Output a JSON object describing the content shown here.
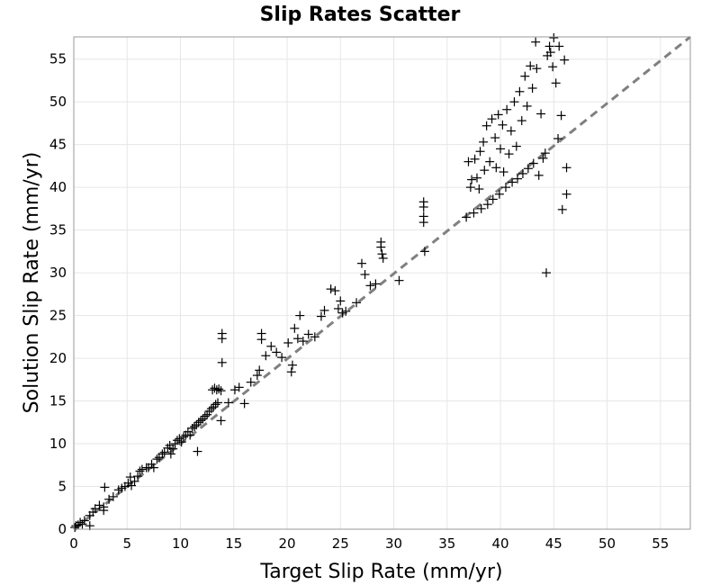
{
  "chart_data": {
    "type": "scatter",
    "title": "Slip Rates Scatter",
    "xlabel": "Target Slip Rate (mm/yr)",
    "ylabel": "Solution Slip Rate (mm/yr)",
    "xlim": [
      0,
      57.8
    ],
    "ylim": [
      0,
      57.6
    ],
    "xticks": [
      0,
      5,
      10,
      15,
      20,
      25,
      30,
      35,
      40,
      45,
      50,
      55
    ],
    "yticks": [
      0,
      5,
      10,
      15,
      20,
      25,
      30,
      35,
      40,
      45,
      50,
      55
    ],
    "grid": true,
    "marker": "plus",
    "marker_color": "#000000",
    "reference_line": {
      "style": "dashed",
      "color": "#808080",
      "from": [
        0,
        0
      ],
      "to": [
        57.8,
        57.6
      ]
    },
    "series": [
      {
        "points": [
          [
            0.1,
            0.2
          ],
          [
            0.2,
            0.4
          ],
          [
            0.4,
            0.5
          ],
          [
            0.6,
            0.8
          ],
          [
            0.8,
            0.6
          ],
          [
            1.0,
            1.0
          ],
          [
            1.5,
            0.4
          ],
          [
            1.5,
            1.6
          ],
          [
            1.8,
            2.0
          ],
          [
            2.0,
            2.4
          ],
          [
            2.4,
            2.8
          ],
          [
            2.8,
            2.2
          ],
          [
            2.8,
            2.6
          ],
          [
            2.9,
            4.9
          ],
          [
            3.3,
            3.5
          ],
          [
            3.7,
            3.8
          ],
          [
            4.2,
            4.6
          ],
          [
            4.5,
            4.8
          ],
          [
            4.8,
            5.0
          ],
          [
            5.1,
            5.4
          ],
          [
            5.3,
            6.1
          ],
          [
            5.4,
            5.1
          ],
          [
            5.7,
            5.6
          ],
          [
            6.0,
            6.2
          ],
          [
            6.2,
            6.8
          ],
          [
            6.4,
            7.0
          ],
          [
            6.8,
            7.2
          ],
          [
            7.0,
            7.2
          ],
          [
            7.3,
            7.6
          ],
          [
            7.5,
            7.2
          ],
          [
            7.8,
            8.2
          ],
          [
            8.0,
            8.4
          ],
          [
            8.3,
            8.8
          ],
          [
            8.5,
            9.0
          ],
          [
            8.8,
            9.5
          ],
          [
            9.0,
            9.8
          ],
          [
            9.1,
            8.8
          ],
          [
            9.3,
            9.4
          ],
          [
            9.5,
            10.0
          ],
          [
            9.7,
            10.4
          ],
          [
            9.9,
            10.6
          ],
          [
            10.1,
            10.2
          ],
          [
            10.3,
            10.8
          ],
          [
            10.5,
            11.0
          ],
          [
            10.7,
            11.4
          ],
          [
            10.9,
            11.0
          ],
          [
            11.1,
            11.8
          ],
          [
            11.3,
            12.0
          ],
          [
            11.5,
            12.2
          ],
          [
            11.7,
            12.5
          ],
          [
            11.6,
            9.1
          ],
          [
            11.9,
            12.7
          ],
          [
            12.1,
            12.9
          ],
          [
            12.3,
            13.2
          ],
          [
            12.5,
            13.4
          ],
          [
            12.7,
            13.8
          ],
          [
            12.9,
            14.1
          ],
          [
            13.1,
            14.3
          ],
          [
            13.3,
            14.6
          ],
          [
            13.5,
            14.8
          ],
          [
            13.8,
            12.7
          ],
          [
            13.0,
            16.3
          ],
          [
            13.2,
            16.5
          ],
          [
            13.4,
            16.3
          ],
          [
            13.6,
            16.4
          ],
          [
            13.8,
            16.2
          ],
          [
            13.9,
            19.5
          ],
          [
            13.9,
            22.3
          ],
          [
            13.9,
            22.9
          ],
          [
            14.5,
            14.8
          ],
          [
            15.1,
            16.3
          ],
          [
            15.5,
            16.6
          ],
          [
            16.0,
            14.7
          ],
          [
            16.6,
            17.2
          ],
          [
            17.2,
            18.0
          ],
          [
            17.4,
            18.6
          ],
          [
            17.6,
            22.9
          ],
          [
            17.6,
            22.2
          ],
          [
            18.0,
            20.3
          ],
          [
            18.5,
            21.4
          ],
          [
            19.0,
            20.7
          ],
          [
            19.5,
            20.1
          ],
          [
            20.1,
            21.8
          ],
          [
            20.4,
            18.4
          ],
          [
            20.5,
            19.2
          ],
          [
            20.7,
            23.5
          ],
          [
            21.0,
            22.3
          ],
          [
            21.2,
            25.0
          ],
          [
            21.5,
            22.0
          ],
          [
            22.0,
            22.8
          ],
          [
            22.6,
            22.5
          ],
          [
            23.2,
            24.9
          ],
          [
            23.5,
            25.6
          ],
          [
            24.1,
            28.1
          ],
          [
            24.5,
            27.9
          ],
          [
            24.8,
            25.8
          ],
          [
            25.0,
            26.7
          ],
          [
            25.2,
            25.3
          ],
          [
            25.5,
            25.5
          ],
          [
            26.5,
            26.5
          ],
          [
            27.0,
            31.1
          ],
          [
            27.3,
            29.8
          ],
          [
            27.8,
            28.5
          ],
          [
            28.3,
            28.7
          ],
          [
            28.8,
            33.6
          ],
          [
            28.8,
            33.0
          ],
          [
            28.9,
            32.2
          ],
          [
            29.0,
            31.7
          ],
          [
            30.5,
            29.1
          ],
          [
            32.8,
            38.3
          ],
          [
            32.8,
            37.7
          ],
          [
            32.8,
            36.6
          ],
          [
            32.8,
            35.9
          ],
          [
            32.9,
            32.5
          ],
          [
            36.8,
            36.5
          ],
          [
            37.0,
            43.0
          ],
          [
            37.2,
            40.0
          ],
          [
            37.3,
            40.9
          ],
          [
            37.5,
            37.0
          ],
          [
            37.6,
            43.3
          ],
          [
            37.8,
            41.1
          ],
          [
            38.0,
            39.8
          ],
          [
            38.1,
            44.2
          ],
          [
            38.2,
            37.5
          ],
          [
            38.4,
            45.3
          ],
          [
            38.5,
            42.0
          ],
          [
            38.7,
            47.2
          ],
          [
            38.8,
            38.0
          ],
          [
            39.0,
            43.0
          ],
          [
            39.2,
            48.0
          ],
          [
            39.3,
            38.6
          ],
          [
            39.5,
            45.8
          ],
          [
            39.6,
            42.3
          ],
          [
            39.8,
            48.5
          ],
          [
            39.9,
            39.2
          ],
          [
            40.0,
            44.5
          ],
          [
            40.2,
            47.3
          ],
          [
            40.3,
            41.8
          ],
          [
            40.5,
            40.0
          ],
          [
            40.6,
            49.1
          ],
          [
            40.8,
            43.9
          ],
          [
            41.0,
            46.6
          ],
          [
            41.1,
            40.6
          ],
          [
            41.3,
            50.0
          ],
          [
            41.5,
            44.8
          ],
          [
            41.6,
            41.0
          ],
          [
            41.8,
            51.2
          ],
          [
            42.0,
            47.8
          ],
          [
            42.1,
            41.6
          ],
          [
            42.3,
            53.0
          ],
          [
            42.5,
            49.5
          ],
          [
            42.6,
            42.2
          ],
          [
            42.8,
            54.2
          ],
          [
            43.0,
            51.6
          ],
          [
            43.1,
            42.8
          ],
          [
            43.3,
            57.0
          ],
          [
            43.4,
            53.9
          ],
          [
            43.6,
            41.4
          ],
          [
            43.8,
            48.6
          ],
          [
            44.0,
            43.4
          ],
          [
            44.2,
            44.0
          ],
          [
            44.3,
            30.0
          ],
          [
            44.4,
            55.4
          ],
          [
            44.6,
            56.5
          ],
          [
            44.7,
            55.8
          ],
          [
            44.9,
            54.1
          ],
          [
            45.0,
            57.5
          ],
          [
            45.2,
            52.2
          ],
          [
            45.4,
            45.7
          ],
          [
            45.5,
            56.5
          ],
          [
            45.7,
            48.4
          ],
          [
            45.8,
            37.4
          ],
          [
            46.0,
            54.9
          ],
          [
            46.2,
            42.3
          ],
          [
            46.2,
            39.2
          ]
        ]
      }
    ]
  }
}
